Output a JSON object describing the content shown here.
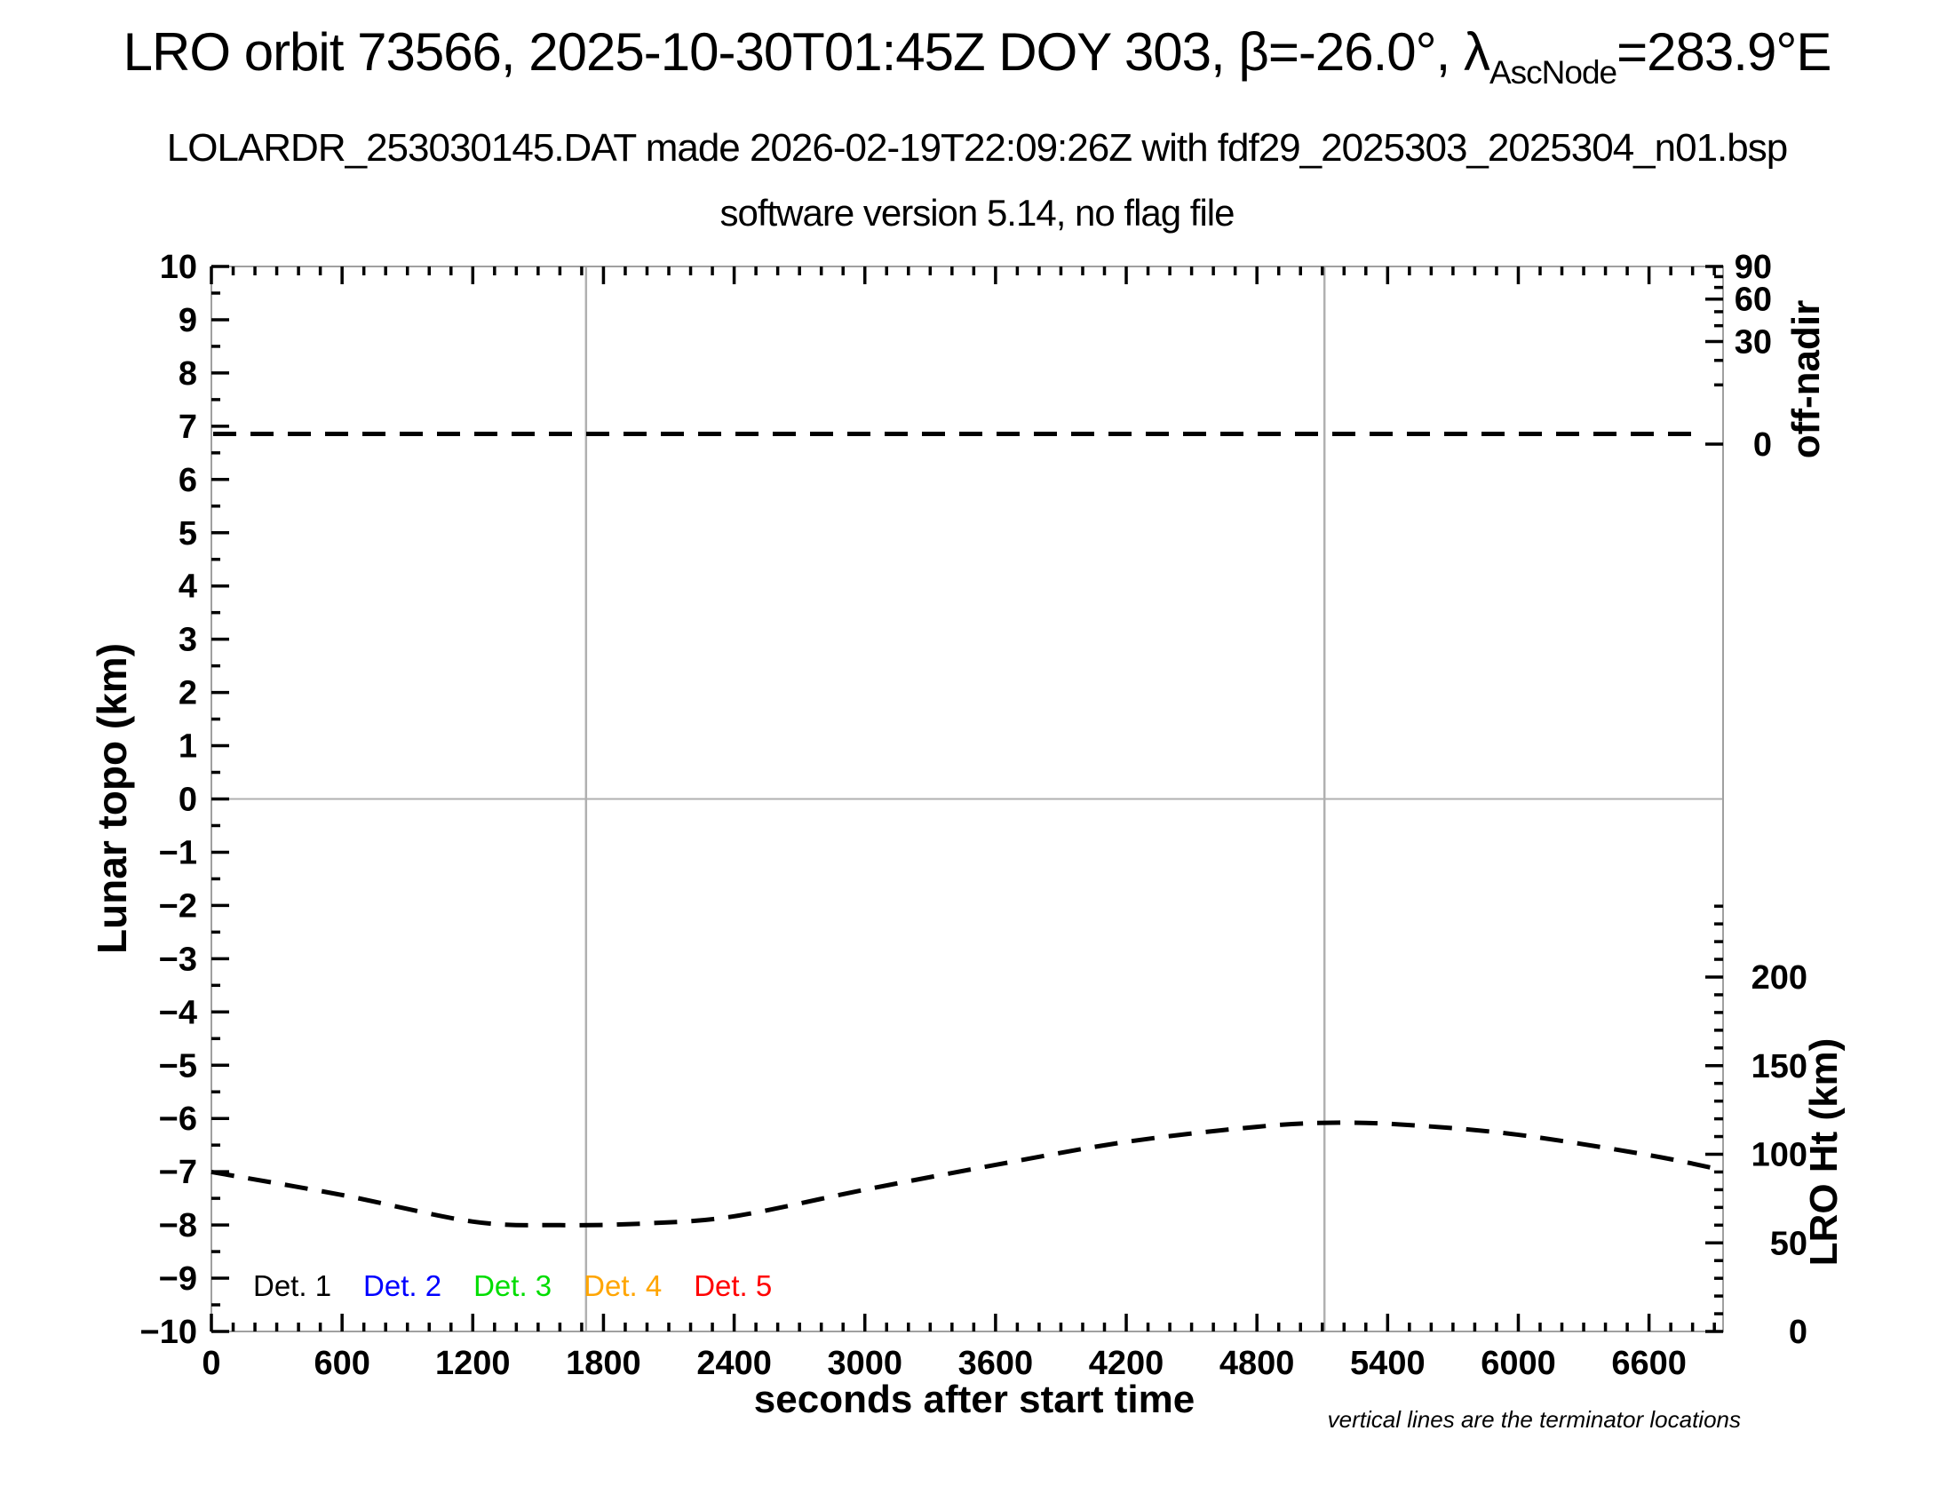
{
  "header": {
    "title": {
      "pre": "LRO orbit 73566, 2025-10-30T01:45Z DOY 303, β=-26.0°, λ",
      "sub": "AscNode",
      "post": "=283.9°E"
    },
    "subtitle_line1": "LOLARDR_253030145.DAT made 2026-02-19T22:09:26Z with fdf29_2025303_2025304_n01.bsp",
    "subtitle_line2": "software version 5.14, no flag file"
  },
  "chart_data": {
    "type": "line",
    "title": "LRO orbit 73566, 2025-10-30T01:45Z DOY 303, β=-26.0°, λAscNode=283.9°E",
    "xlabel": "seconds after start time",
    "ylabel_left": "Lunar topo (km)",
    "ylabel_right_top": "off-nadir",
    "ylabel_right_bottom": "LRO Ht (km)",
    "x_range": [
      0,
      6940
    ],
    "x_major_ticks": [
      0,
      600,
      1200,
      1800,
      2400,
      3000,
      3600,
      4200,
      4800,
      5400,
      6000,
      6600
    ],
    "x_minor_step": 100,
    "y_left_range": [
      -10,
      10
    ],
    "y_left_major_ticks": [
      -10,
      -9,
      -8,
      -7,
      -6,
      -5,
      -4,
      -3,
      -2,
      -1,
      0,
      1,
      2,
      3,
      4,
      5,
      6,
      7,
      8,
      9,
      10
    ],
    "y_left_minor_step": 0.5,
    "right_top_axis": {
      "label": "off-nadir",
      "unit": "deg",
      "mapping": "sqrt",
      "max_value": 90,
      "major_ticks": [
        90,
        60,
        30,
        0
      ],
      "minor_ticks": [
        80,
        70,
        50,
        40,
        20,
        10
      ]
    },
    "right_bottom_axis": {
      "label": "LRO Ht (km)",
      "unit": "km",
      "major_ticks": [
        200,
        150,
        100,
        50,
        0
      ],
      "minor_step": 10,
      "minor_max": 240
    },
    "grid": {
      "horizontal_zero_topo_line": true,
      "terminator_lines_s": [
        1720,
        5110
      ]
    },
    "series": [
      {
        "name": "off-nadir angle",
        "axis": "right_top",
        "style": "dashed",
        "color": "#000000",
        "constant_value_deg": 0.3,
        "x_start_s": 0,
        "x_end_s": 6800
      },
      {
        "name": "LRO height",
        "axis": "right_bottom",
        "style": "dashed",
        "color": "#000000",
        "points_s_km": [
          [
            0,
            90
          ],
          [
            600,
            77
          ],
          [
            1200,
            62
          ],
          [
            1600,
            60
          ],
          [
            2000,
            61
          ],
          [
            2400,
            65
          ],
          [
            3000,
            80
          ],
          [
            3600,
            94
          ],
          [
            4200,
            107
          ],
          [
            4800,
            115.5
          ],
          [
            5150,
            117.8
          ],
          [
            5500,
            116.5
          ],
          [
            6000,
            111
          ],
          [
            6600,
            99.5
          ],
          [
            6940,
            91
          ]
        ]
      }
    ],
    "legend": [
      {
        "label": "Det. 1",
        "color": "#000000"
      },
      {
        "label": "Det. 2",
        "color": "#0000ff"
      },
      {
        "label": "Det. 3",
        "color": "#00dd00"
      },
      {
        "label": "Det. 4",
        "color": "#ffa500"
      },
      {
        "label": "Det. 5",
        "color": "#ff0000"
      }
    ],
    "note": "vertical lines are the terminator locations",
    "colors": {
      "frame": "#a0a0a0",
      "grid_line": "#b0b0b0",
      "tick": "#000000",
      "curve": "#000000"
    }
  }
}
